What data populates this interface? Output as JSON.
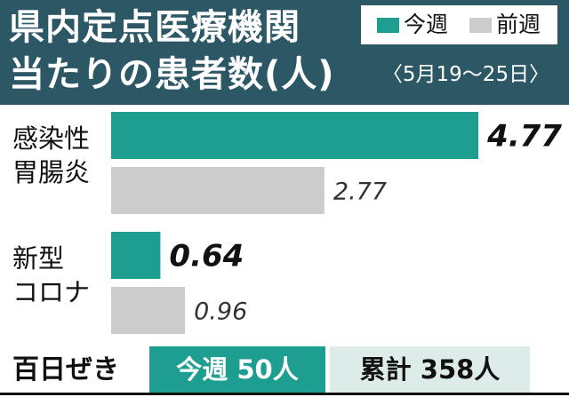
{
  "header": {
    "title_line1": "県内定点医療機関",
    "title_line2": "当たりの患者数(人)",
    "period": "〈5月19～25日〉"
  },
  "legend": {
    "this_week_label": "今週",
    "last_week_label": "前週"
  },
  "colors": {
    "header_bg": "#2c5866",
    "this_week": "#1e9e90",
    "last_week": "#cccccc",
    "cumulative_bg": "#ddece8"
  },
  "chart_data": {
    "type": "bar",
    "orientation": "horizontal",
    "categories": [
      [
        "感染性",
        "胃腸炎"
      ],
      [
        "新型",
        "コロナ"
      ]
    ],
    "series": [
      {
        "name": "今週",
        "values": [
          4.77,
          0.64
        ],
        "labels": [
          "4.77",
          "0.64"
        ]
      },
      {
        "name": "前週",
        "values": [
          2.77,
          0.96
        ],
        "labels": [
          "2.77",
          "0.96"
        ]
      }
    ],
    "xlim": [
      0,
      5.0
    ],
    "grid": false,
    "legend_position": "top-right"
  },
  "footer": {
    "label": "百日ぜき",
    "weekly": "今週 50人",
    "cumulative": "累計 358人"
  }
}
